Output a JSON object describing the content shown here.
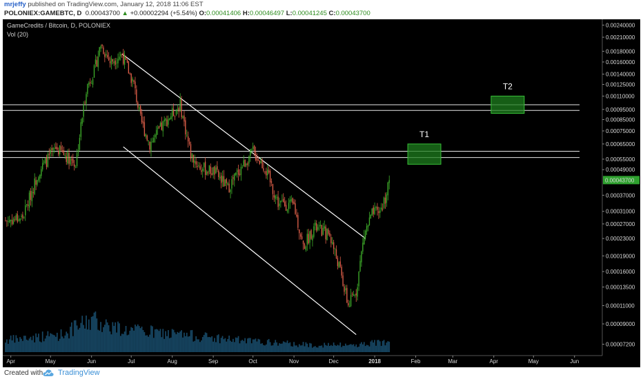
{
  "header": {
    "author": "mrjeffy",
    "published": "published on TradingView.com, January 12, 2018 11:06 EST",
    "symbol": "POLONIEX:GAMEBTC, D",
    "last": "0.00043700",
    "arrow": "▲",
    "change": "+0.00002294 (+5.54%)",
    "open_label": "O:",
    "open": "0.00041406",
    "high_label": "H:",
    "high": "0.00046497",
    "low_label": "L:",
    "low": "0.00041245",
    "close_label": "C:",
    "close": "0.00043700"
  },
  "footer": {
    "created": "Created with",
    "brand": "TradingView"
  },
  "colors": {
    "background": "#000000",
    "up": "#3fae2a",
    "down": "#e0604a",
    "volume": "#1f5f86",
    "target_fill": "#1e7d1e",
    "price_tag": "#2fa12f"
  },
  "chart_data": {
    "type": "candlestick",
    "title": "GameCredits / Bitcoin, D, POLONIEX",
    "indicator": "Vol (20)",
    "y_scale": "log",
    "ylim": [
      6.6e-05,
      0.0025
    ],
    "y_ticks": [
      "0.00240000",
      "0.00210000",
      "0.00180000",
      "0.00160000",
      "0.00140000",
      "0.00125000",
      "0.00110000",
      "0.00095000",
      "0.00085000",
      "0.00075000",
      "0.00065000",
      "0.00055000",
      "0.00049000",
      "0.00043700",
      "0.00037000",
      "0.00031000",
      "0.00027000",
      "0.00023000",
      "0.00019000",
      "0.00016000",
      "0.00013500",
      "0.00011000",
      "0.00009000",
      "0.00007200"
    ],
    "current_price": "0.00043700",
    "x_range": [
      "2017-03-28",
      "2018-06-22"
    ],
    "x_ticks": [
      {
        "label": "Apr",
        "date": "2017-04-01"
      },
      {
        "label": "May",
        "date": "2017-05-01"
      },
      {
        "label": "Jun",
        "date": "2017-06-01"
      },
      {
        "label": "Jul",
        "date": "2017-07-01"
      },
      {
        "label": "Aug",
        "date": "2017-08-01"
      },
      {
        "label": "Sep",
        "date": "2017-09-01"
      },
      {
        "label": "Oct",
        "date": "2017-10-01"
      },
      {
        "label": "Nov",
        "date": "2017-11-01"
      },
      {
        "label": "Dec",
        "date": "2017-12-01"
      },
      {
        "label": "2018",
        "date": "2018-01-01"
      },
      {
        "label": "Feb",
        "date": "2018-02-01"
      },
      {
        "label": "Mar",
        "date": "2018-03-01"
      },
      {
        "label": "Apr",
        "date": "2018-04-01"
      },
      {
        "label": "May",
        "date": "2018-05-01"
      },
      {
        "label": "Jun",
        "date": "2018-06-01"
      }
    ],
    "price_path": [
      [
        "2017-03-28",
        0.00028
      ],
      [
        "2017-04-10",
        0.00029
      ],
      [
        "2017-04-22",
        0.00048
      ],
      [
        "2017-05-05",
        0.00062
      ],
      [
        "2017-05-15",
        0.00056
      ],
      [
        "2017-05-20",
        0.00052
      ],
      [
        "2017-05-28",
        0.0012
      ],
      [
        "2017-06-03",
        0.00145
      ],
      [
        "2017-06-08",
        0.00195
      ],
      [
        "2017-06-15",
        0.0016
      ],
      [
        "2017-06-24",
        0.00175
      ],
      [
        "2017-07-03",
        0.00125
      ],
      [
        "2017-07-08",
        0.00085
      ],
      [
        "2017-07-15",
        0.00065
      ],
      [
        "2017-07-28",
        0.00085
      ],
      [
        "2017-08-07",
        0.001
      ],
      [
        "2017-08-15",
        0.00058
      ],
      [
        "2017-08-22",
        0.0005
      ],
      [
        "2017-09-02",
        0.00048
      ],
      [
        "2017-09-12",
        0.0004
      ],
      [
        "2017-09-20",
        0.00048
      ],
      [
        "2017-10-01",
        0.0006
      ],
      [
        "2017-10-10",
        0.0005
      ],
      [
        "2017-10-20",
        0.00034
      ],
      [
        "2017-11-01",
        0.00033
      ],
      [
        "2017-11-08",
        0.00021
      ],
      [
        "2017-11-16",
        0.00026
      ],
      [
        "2017-11-28",
        0.00024
      ],
      [
        "2017-12-05",
        0.00017
      ],
      [
        "2017-12-12",
        0.00011
      ],
      [
        "2017-12-18",
        0.00013
      ],
      [
        "2017-12-24",
        0.00024
      ],
      [
        "2017-12-30",
        0.0003
      ],
      [
        "2018-01-05",
        0.00031
      ],
      [
        "2018-01-09",
        0.00036
      ],
      [
        "2018-01-12",
        0.000437
      ]
    ],
    "volume_level": [
      [
        "2017-03-28",
        0.2
      ],
      [
        "2017-05-10",
        0.3
      ],
      [
        "2017-06-01",
        0.55
      ],
      [
        "2017-06-25",
        0.38
      ],
      [
        "2017-08-15",
        0.28
      ],
      [
        "2017-10-01",
        0.18
      ],
      [
        "2017-11-15",
        0.12
      ],
      [
        "2017-12-15",
        0.12
      ],
      [
        "2018-01-12",
        0.18
      ]
    ],
    "channel": {
      "upper": [
        [
          "2017-06-24",
          0.00175
        ],
        [
          "2017-12-25",
          0.00023
        ]
      ],
      "lower": [
        [
          "2017-06-25",
          0.00063
        ],
        [
          "2017-12-18",
          8e-05
        ]
      ]
    },
    "horizontal_lines": [
      0.001,
      0.00094,
      0.0006,
      0.00056
    ],
    "target_zones": [
      {
        "label": "T1",
        "from": "2018-01-26",
        "to": "2018-02-20",
        "low": 0.00052,
        "high": 0.00065
      },
      {
        "label": "T2",
        "from": "2018-03-30",
        "to": "2018-04-24",
        "low": 0.00091,
        "high": 0.0011
      }
    ]
  }
}
